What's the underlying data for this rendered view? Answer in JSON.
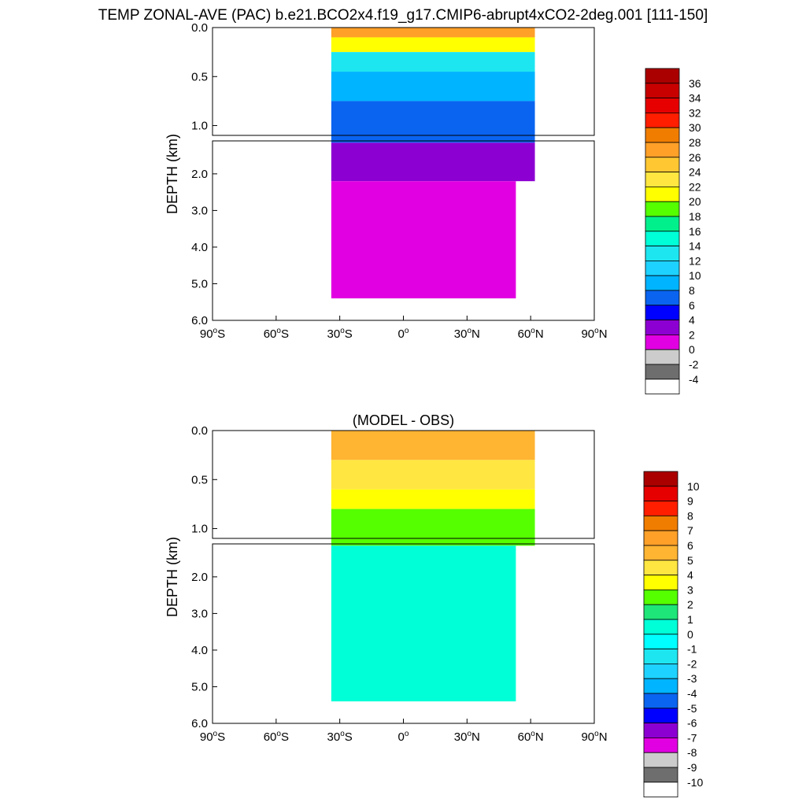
{
  "title": "TEMP ZONAL-AVE (PAC) b.e21.BCO2x4.f19_g17.CMIP6-abrupt4xCO2-2deg.001 [111-150]",
  "chart_data": [
    {
      "type": "heatmap",
      "name": "temperature",
      "title": "",
      "ylabel": "DEPTH (km)",
      "xlabel": "",
      "xlim": [
        -90,
        90
      ],
      "ylim": [
        6.0,
        0.0
      ],
      "x_ticks": [
        {
          "value": -90,
          "num": "90",
          "hemi": "S"
        },
        {
          "value": -60,
          "num": "60",
          "hemi": "S"
        },
        {
          "value": -30,
          "num": "30",
          "hemi": "S"
        },
        {
          "value": 0,
          "num": "0",
          "hemi": ""
        },
        {
          "value": 30,
          "num": "30",
          "hemi": "N"
        },
        {
          "value": 60,
          "num": "60",
          "hemi": "N"
        },
        {
          "value": 90,
          "num": "90",
          "hemi": "N"
        }
      ],
      "y_ticks_upper": [
        "0.0",
        "0.5",
        "1.0"
      ],
      "y_ticks_lower": [
        "2.0",
        "3.0",
        "4.0",
        "5.0",
        "6.0"
      ],
      "data_lat_range": [
        -34,
        62
      ],
      "depth_layers_km": [
        {
          "top": 0.0,
          "bottom": 0.1,
          "value": 26
        },
        {
          "top": 0.1,
          "bottom": 0.25,
          "value": 20
        },
        {
          "top": 0.25,
          "bottom": 0.45,
          "value": 13
        },
        {
          "top": 0.45,
          "bottom": 0.75,
          "value": 9
        },
        {
          "top": 0.75,
          "bottom": 1.15,
          "value": 6
        },
        {
          "top": 1.15,
          "bottom": 2.2,
          "value": 3
        },
        {
          "top": 2.2,
          "bottom": 5.4,
          "value": 1
        }
      ],
      "colorbar_labels": [
        "36",
        "34",
        "32",
        "30",
        "28",
        "26",
        "24",
        "22",
        "20",
        "18",
        "16",
        "14",
        "12",
        "10",
        "8",
        "6",
        "4",
        "2",
        "0",
        "-2",
        "-4"
      ]
    },
    {
      "type": "heatmap",
      "name": "model_minus_obs",
      "title": "(MODEL - OBS)",
      "ylabel": "DEPTH (km)",
      "xlabel": "",
      "xlim": [
        -90,
        90
      ],
      "ylim": [
        6.0,
        0.0
      ],
      "x_ticks": [
        {
          "value": -90,
          "num": "90",
          "hemi": "S"
        },
        {
          "value": -60,
          "num": "60",
          "hemi": "S"
        },
        {
          "value": -30,
          "num": "30",
          "hemi": "S"
        },
        {
          "value": 0,
          "num": "0",
          "hemi": ""
        },
        {
          "value": 30,
          "num": "30",
          "hemi": "N"
        },
        {
          "value": 60,
          "num": "60",
          "hemi": "N"
        },
        {
          "value": 90,
          "num": "90",
          "hemi": "N"
        }
      ],
      "y_ticks_upper": [
        "0.0",
        "0.5",
        "1.0"
      ],
      "y_ticks_lower": [
        "2.0",
        "3.0",
        "4.0",
        "5.0",
        "6.0"
      ],
      "data_lat_range": [
        -34,
        62
      ],
      "depth_layers_km": [
        {
          "top": 0.0,
          "bottom": 0.3,
          "value": 5.5
        },
        {
          "top": 0.3,
          "bottom": 0.6,
          "value": 4.5
        },
        {
          "top": 0.6,
          "bottom": 0.8,
          "value": 3.5
        },
        {
          "top": 0.8,
          "bottom": 1.15,
          "value": 2.5
        },
        {
          "top": 1.15,
          "bottom": 5.4,
          "value": 0.5
        }
      ],
      "colorbar_labels": [
        "10",
        "9",
        "8",
        "7",
        "6",
        "5",
        "4",
        "3",
        "2",
        "1",
        "0",
        "-1",
        "-2",
        "-3",
        "-4",
        "-5",
        "-6",
        "-7",
        "-8",
        "-9",
        "-10"
      ]
    }
  ],
  "colors": {
    "palette": [
      "#ffffff",
      "#6e6e6e",
      "#cccccc",
      "#e100e1",
      "#8c00d2",
      "#0000ff",
      "#0a64f0",
      "#00b4ff",
      "#1ed2ff",
      "#1ee6f0",
      "#00ffd7",
      "#00f08c",
      "#55ff00",
      "#ffff00",
      "#ffe641",
      "#ffc832",
      "#ffa028",
      "#f07d00",
      "#ff1e00",
      "#e60000",
      "#c80000",
      "#aa0000"
    ],
    "anomaly_palette": [
      "#ffffff",
      "#6e6e6e",
      "#cccccc",
      "#e100e1",
      "#8c00d2",
      "#0000ff",
      "#0a64f0",
      "#00b4ff",
      "#1ed2ff",
      "#1ee6f0",
      "#00ffff",
      "#00ffd7",
      "#1ee678",
      "#55ff00",
      "#ffff00",
      "#ffe641",
      "#ffb432",
      "#ffa028",
      "#f07d00",
      "#ff1e00",
      "#e60000",
      "#aa0000"
    ]
  }
}
